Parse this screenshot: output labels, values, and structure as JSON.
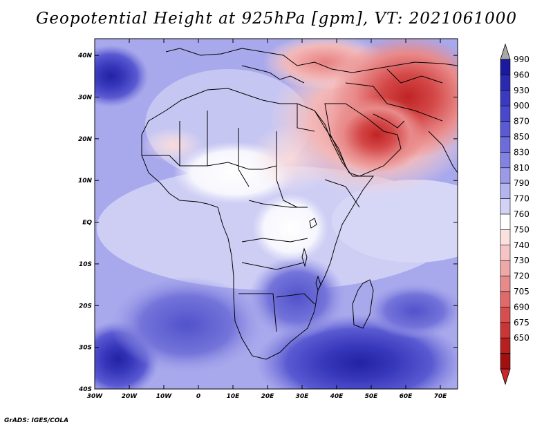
{
  "title": "Geopotential Height at 925hPa [gpm], VT: 2021061000",
  "credit": "GrADS: IGES/COLA",
  "map": {
    "lon_labels": [
      "30W",
      "20W",
      "10W",
      "0",
      "10E",
      "20E",
      "30E",
      "40E",
      "50E",
      "60E",
      "70E"
    ],
    "lat_labels": [
      "40N",
      "30N",
      "20N",
      "10N",
      "EQ",
      "10S",
      "20S",
      "30S",
      "40S"
    ],
    "lon_range": [
      -30,
      75
    ],
    "lat_range": [
      -40,
      44
    ]
  },
  "colorbar": {
    "labels": [
      "990",
      "960",
      "930",
      "900",
      "870",
      "850",
      "830",
      "810",
      "790",
      "770",
      "760",
      "750",
      "740",
      "730",
      "720",
      "705",
      "690",
      "675",
      "650"
    ],
    "colors": [
      "#1a1a9e",
      "#2a2ab0",
      "#3a3ac0",
      "#4848cc",
      "#5a5ad4",
      "#6c6cdc",
      "#8282e2",
      "#9a9ae8",
      "#b4b4ef",
      "#d2d2f6",
      "#ffffff",
      "#fbe0e0",
      "#f5c4c4",
      "#efa8a8",
      "#e88a8a",
      "#e06a6a",
      "#d64e4e",
      "#c83636",
      "#b82020",
      "#a01010"
    ],
    "top_cap_color": "#a8a8a8",
    "bottom_cap_color": "#c82a2a"
  }
}
